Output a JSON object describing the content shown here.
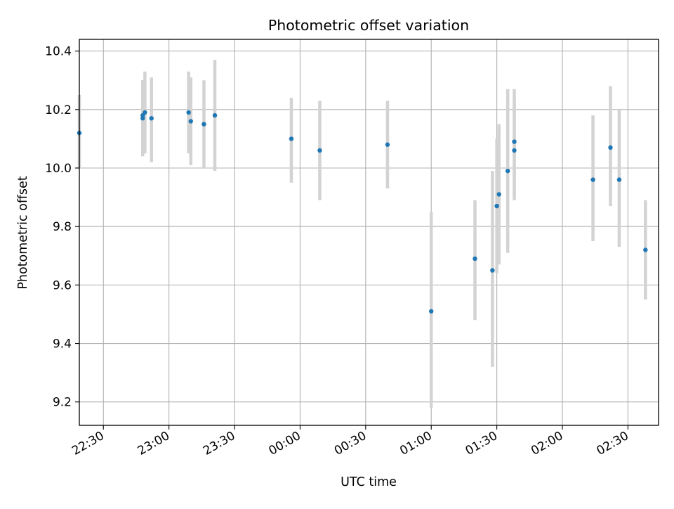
{
  "chart_data": {
    "type": "scatter",
    "title": "Photometric offset variation",
    "xlabel": "UTC time",
    "ylabel": "Photometric offset",
    "x_ticks": [
      "22:30",
      "23:00",
      "23:30",
      "00:00",
      "00:30",
      "01:00",
      "01:30",
      "02:00",
      "02:30"
    ],
    "y_ticks": [
      "9.2",
      "9.4",
      "9.6",
      "9.8",
      "10.0",
      "10.2",
      "10.4"
    ],
    "xlim": [
      "22:19",
      "02:44"
    ],
    "ylim": [
      9.12,
      10.44
    ],
    "grid": true,
    "point_color": "#1f77b4",
    "errorbar_color": "#d3d3d3",
    "points": [
      {
        "x": "22:19",
        "y": 10.12,
        "ylow": 10.0,
        "yhigh": 10.25
      },
      {
        "x": "22:48",
        "y": 10.18,
        "ylow": 10.06,
        "yhigh": 10.3
      },
      {
        "x": "22:48",
        "y": 10.17,
        "ylow": 10.04,
        "yhigh": 10.3
      },
      {
        "x": "22:49",
        "y": 10.19,
        "ylow": 10.05,
        "yhigh": 10.33
      },
      {
        "x": "22:52",
        "y": 10.17,
        "ylow": 10.02,
        "yhigh": 10.31
      },
      {
        "x": "23:09",
        "y": 10.19,
        "ylow": 10.05,
        "yhigh": 10.33
      },
      {
        "x": "23:10",
        "y": 10.16,
        "ylow": 10.01,
        "yhigh": 10.31
      },
      {
        "x": "23:16",
        "y": 10.15,
        "ylow": 10.0,
        "yhigh": 10.3
      },
      {
        "x": "23:21",
        "y": 10.18,
        "ylow": 9.99,
        "yhigh": 10.37
      },
      {
        "x": "23:56",
        "y": 10.1,
        "ylow": 9.95,
        "yhigh": 10.24
      },
      {
        "x": "00:09",
        "y": 10.06,
        "ylow": 9.89,
        "yhigh": 10.23
      },
      {
        "x": "00:40",
        "y": 10.08,
        "ylow": 9.93,
        "yhigh": 10.23
      },
      {
        "x": "01:00",
        "y": 9.51,
        "ylow": 9.18,
        "yhigh": 9.85
      },
      {
        "x": "01:20",
        "y": 9.69,
        "ylow": 9.48,
        "yhigh": 9.89
      },
      {
        "x": "01:28",
        "y": 9.65,
        "ylow": 9.32,
        "yhigh": 9.99
      },
      {
        "x": "01:30",
        "y": 9.87,
        "ylow": 9.64,
        "yhigh": 10.1
      },
      {
        "x": "01:31",
        "y": 9.91,
        "ylow": 9.67,
        "yhigh": 10.15
      },
      {
        "x": "01:35",
        "y": 9.99,
        "ylow": 9.71,
        "yhigh": 10.27
      },
      {
        "x": "01:38",
        "y": 10.06,
        "ylow": 9.89,
        "yhigh": 10.24
      },
      {
        "x": "01:38",
        "y": 10.09,
        "ylow": 9.91,
        "yhigh": 10.27
      },
      {
        "x": "02:14",
        "y": 9.96,
        "ylow": 9.75,
        "yhigh": 10.18
      },
      {
        "x": "02:22",
        "y": 10.07,
        "ylow": 9.87,
        "yhigh": 10.28
      },
      {
        "x": "02:26",
        "y": 9.96,
        "ylow": 9.73,
        "yhigh": 10.2
      },
      {
        "x": "02:38",
        "y": 9.72,
        "ylow": 9.55,
        "yhigh": 9.89
      }
    ]
  }
}
